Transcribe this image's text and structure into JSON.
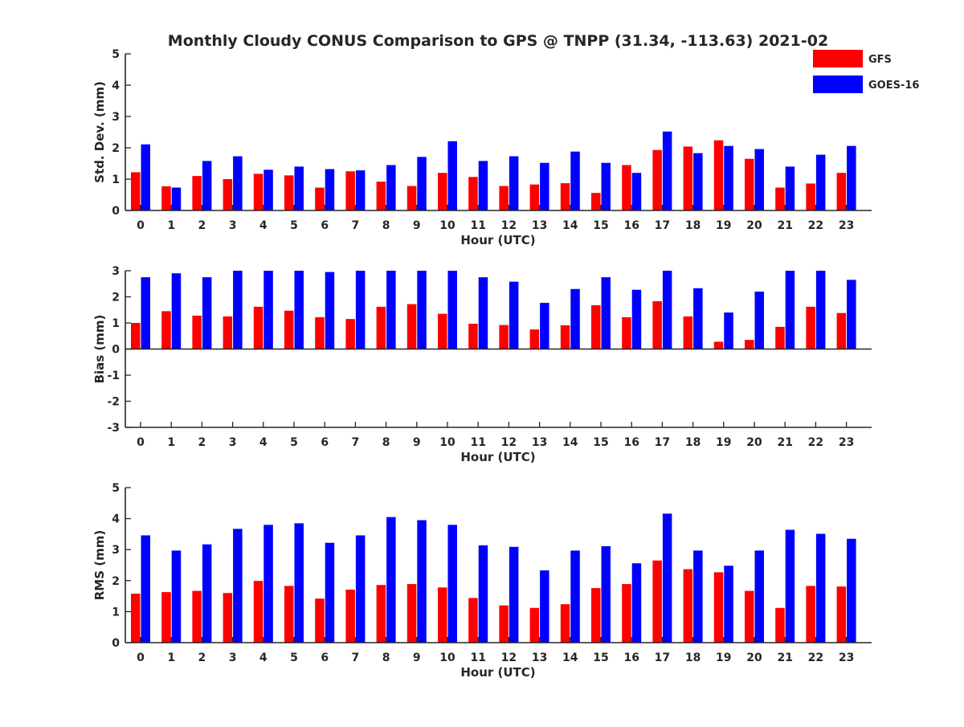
{
  "figure": {
    "title": "Monthly Cloudy CONUS Comparison to GPS @ TNPP (31.34, -113.63) 2021-02"
  },
  "legend": {
    "placement": "top-right",
    "entries": [
      {
        "label": "GFS",
        "color": "#ff0000"
      },
      {
        "label": "GOES-16",
        "color": "#0000ff"
      }
    ]
  },
  "chart_data": [
    {
      "type": "bar",
      "xlabel": "Hour (UTC)",
      "ylabel": "Std. Dev. (mm)",
      "ylim": [
        0,
        5
      ],
      "yticks": [
        "0",
        "1",
        "2",
        "3",
        "4",
        "5"
      ],
      "categories": [
        "0",
        "1",
        "2",
        "3",
        "4",
        "5",
        "6",
        "7",
        "8",
        "9",
        "10",
        "11",
        "12",
        "13",
        "14",
        "15",
        "16",
        "17",
        "18",
        "19",
        "20",
        "21",
        "22",
        "23"
      ],
      "series": [
        {
          "name": "GFS",
          "color": "#ff0000",
          "values": [
            1.22,
            0.77,
            1.1,
            1.0,
            1.17,
            1.12,
            0.73,
            1.25,
            0.92,
            0.78,
            1.2,
            1.07,
            0.78,
            0.83,
            0.87,
            0.56,
            1.45,
            1.93,
            2.04,
            2.24,
            1.65,
            0.73,
            0.86,
            1.2
          ]
        },
        {
          "name": "GOES-16",
          "color": "#0000ff",
          "values": [
            2.11,
            0.73,
            1.58,
            1.73,
            1.3,
            1.4,
            1.32,
            1.28,
            1.45,
            1.71,
            2.21,
            1.58,
            1.73,
            1.52,
            1.88,
            1.52,
            1.2,
            2.52,
            1.83,
            2.06,
            1.96,
            1.4,
            1.78,
            2.06
          ]
        }
      ]
    },
    {
      "type": "bar",
      "xlabel": "Hour (UTC)",
      "ylabel": "Bias (mm)",
      "ylim": [
        -3,
        3
      ],
      "yticks": [
        "-3",
        "-2",
        "-1",
        "0",
        "1",
        "2",
        "3"
      ],
      "categories": [
        "0",
        "1",
        "2",
        "3",
        "4",
        "5",
        "6",
        "7",
        "8",
        "9",
        "10",
        "11",
        "12",
        "13",
        "14",
        "15",
        "16",
        "17",
        "18",
        "19",
        "20",
        "21",
        "22",
        "23"
      ],
      "series": [
        {
          "name": "GFS",
          "color": "#ff0000",
          "values": [
            1.0,
            1.45,
            1.28,
            1.25,
            1.62,
            1.47,
            1.22,
            1.15,
            1.62,
            1.72,
            1.35,
            0.97,
            0.92,
            0.75,
            0.91,
            1.68,
            1.22,
            1.83,
            1.25,
            0.28,
            0.35,
            0.85,
            1.62,
            1.38
          ]
        },
        {
          "name": "GOES-16",
          "color": "#0000ff",
          "values": [
            2.75,
            2.9,
            2.75,
            3.0,
            3.0,
            3.0,
            2.95,
            3.0,
            3.0,
            3.0,
            3.0,
            2.75,
            2.58,
            1.77,
            2.3,
            2.75,
            2.27,
            3.0,
            2.33,
            1.4,
            2.2,
            3.0,
            3.0,
            2.65
          ]
        }
      ]
    },
    {
      "type": "bar",
      "xlabel": "Hour (UTC)",
      "ylabel": "RMS (mm)",
      "ylim": [
        0,
        5
      ],
      "yticks": [
        "0",
        "1",
        "2",
        "3",
        "4",
        "5"
      ],
      "categories": [
        "0",
        "1",
        "2",
        "3",
        "4",
        "5",
        "6",
        "7",
        "8",
        "9",
        "10",
        "11",
        "12",
        "13",
        "14",
        "15",
        "16",
        "17",
        "18",
        "19",
        "20",
        "21",
        "22",
        "23"
      ],
      "series": [
        {
          "name": "GFS",
          "color": "#ff0000",
          "values": [
            1.58,
            1.63,
            1.67,
            1.6,
            1.99,
            1.83,
            1.42,
            1.71,
            1.86,
            1.89,
            1.78,
            1.44,
            1.2,
            1.12,
            1.24,
            1.76,
            1.89,
            2.65,
            2.37,
            2.27,
            1.67,
            1.12,
            1.83,
            1.81
          ]
        },
        {
          "name": "GOES-16",
          "color": "#0000ff",
          "values": [
            3.46,
            2.97,
            3.17,
            3.67,
            3.8,
            3.85,
            3.22,
            3.46,
            4.05,
            3.95,
            3.8,
            3.14,
            3.09,
            2.33,
            2.97,
            3.11,
            2.56,
            4.16,
            2.97,
            2.48,
            2.97,
            3.64,
            3.51,
            3.35
          ]
        }
      ]
    }
  ]
}
